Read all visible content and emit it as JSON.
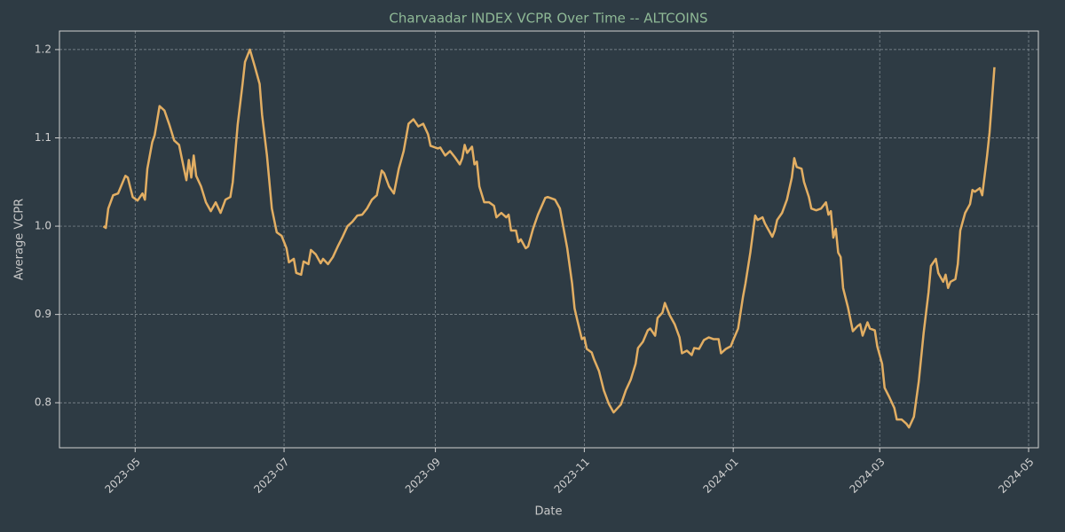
{
  "chart_data": {
    "type": "line",
    "title": "Charvaadar INDEX VCPR Over Time -- ALTCOINS",
    "x_label": "Date",
    "y_label": "Average VCPR",
    "x": [
      "2023-04-18",
      "2023-04-19",
      "2023-04-20",
      "2023-04-22",
      "2023-04-24",
      "2023-04-27",
      "2023-04-28",
      "2023-04-30",
      "2023-05-02",
      "2023-05-04",
      "2023-05-05",
      "2023-05-06",
      "2023-05-08",
      "2023-05-09",
      "2023-05-11",
      "2023-05-13",
      "2023-05-15",
      "2023-05-17",
      "2023-05-19",
      "2023-05-21",
      "2023-05-22",
      "2023-05-23",
      "2023-05-24",
      "2023-05-25",
      "2023-05-26",
      "2023-05-28",
      "2023-05-30",
      "2023-06-01",
      "2023-06-03",
      "2023-06-05",
      "2023-06-07",
      "2023-06-09",
      "2023-06-10",
      "2023-06-12",
      "2023-06-14",
      "2023-06-15",
      "2023-06-17",
      "2023-06-19",
      "2023-06-21",
      "2023-06-22",
      "2023-06-24",
      "2023-06-25",
      "2023-06-26",
      "2023-06-28",
      "2023-06-30",
      "2023-07-02",
      "2023-07-03",
      "2023-07-05",
      "2023-07-06",
      "2023-07-08",
      "2023-07-09",
      "2023-07-11",
      "2023-07-12",
      "2023-07-14",
      "2023-07-16",
      "2023-07-17",
      "2023-07-19",
      "2023-07-21",
      "2023-07-23",
      "2023-07-25",
      "2023-07-27",
      "2023-07-29",
      "2023-07-31",
      "2023-08-02",
      "2023-08-04",
      "2023-08-06",
      "2023-08-08",
      "2023-08-10",
      "2023-08-11",
      "2023-08-13",
      "2023-08-15",
      "2023-08-17",
      "2023-08-19",
      "2023-08-21",
      "2023-08-23",
      "2023-08-25",
      "2023-08-27",
      "2023-08-29",
      "2023-08-30",
      "2023-09-02",
      "2023-09-03",
      "2023-09-05",
      "2023-09-07",
      "2023-09-09",
      "2023-09-11",
      "2023-09-12",
      "2023-09-13",
      "2023-09-14",
      "2023-09-16",
      "2023-09-17",
      "2023-09-18",
      "2023-09-19",
      "2023-09-21",
      "2023-09-23",
      "2023-09-25",
      "2023-09-26",
      "2023-09-28",
      "2023-09-30",
      "2023-10-01",
      "2023-10-02",
      "2023-10-04",
      "2023-10-05",
      "2023-10-06",
      "2023-10-08",
      "2023-10-09",
      "2023-10-10",
      "2023-10-11",
      "2023-10-13",
      "2023-10-16",
      "2023-10-17",
      "2023-10-20",
      "2023-10-22",
      "2023-10-23",
      "2023-10-25",
      "2023-10-27",
      "2023-10-28",
      "2023-10-29",
      "2023-10-31",
      "2023-11-01",
      "2023-11-02",
      "2023-11-04",
      "2023-11-05",
      "2023-11-07",
      "2023-11-09",
      "2023-11-11",
      "2023-11-13",
      "2023-11-14",
      "2023-11-16",
      "2023-11-18",
      "2023-11-20",
      "2023-11-22",
      "2023-11-23",
      "2023-11-25",
      "2023-11-27",
      "2023-11-28",
      "2023-11-30",
      "2023-12-01",
      "2023-12-03",
      "2023-12-04",
      "2023-12-06",
      "2023-12-08",
      "2023-12-10",
      "2023-12-11",
      "2023-12-13",
      "2023-12-15",
      "2023-12-16",
      "2023-12-18",
      "2023-12-20",
      "2023-12-22",
      "2023-12-24",
      "2023-12-26",
      "2023-12-27",
      "2023-12-29",
      "2023-12-31",
      "2024-01-01",
      "2024-01-03",
      "2024-01-05",
      "2024-01-06",
      "2024-01-08",
      "2024-01-10",
      "2024-01-11",
      "2024-01-13",
      "2024-01-14",
      "2024-01-16",
      "2024-01-17",
      "2024-01-18",
      "2024-01-19",
      "2024-01-21",
      "2024-01-23",
      "2024-01-25",
      "2024-01-26",
      "2024-01-27",
      "2024-01-29",
      "2024-01-30",
      "2024-02-01",
      "2024-02-02",
      "2024-02-04",
      "2024-02-06",
      "2024-02-08",
      "2024-02-09",
      "2024-02-10",
      "2024-02-11",
      "2024-02-12",
      "2024-02-13",
      "2024-02-14",
      "2024-02-15",
      "2024-02-17",
      "2024-02-19",
      "2024-02-21",
      "2024-02-22",
      "2024-02-23",
      "2024-02-25",
      "2024-02-26",
      "2024-02-28",
      "2024-02-29",
      "2024-03-02",
      "2024-03-03",
      "2024-03-05",
      "2024-03-07",
      "2024-03-08",
      "2024-03-10",
      "2024-03-12",
      "2024-03-13",
      "2024-03-15",
      "2024-03-17",
      "2024-03-19",
      "2024-03-21",
      "2024-03-22",
      "2024-03-24",
      "2024-03-25",
      "2024-03-27",
      "2024-03-28",
      "2024-03-29",
      "2024-03-30",
      "2024-04-01",
      "2024-04-02",
      "2024-04-03",
      "2024-04-05",
      "2024-04-07",
      "2024-04-08",
      "2024-04-09",
      "2024-04-11",
      "2024-04-12",
      "2024-04-14",
      "2024-04-15",
      "2024-04-17"
    ],
    "series": [
      {
        "name": "Average VCPR",
        "color": "#e2ae63",
        "values": [
          1.0,
          0.998,
          1.02,
          1.035,
          1.037,
          1.057,
          1.055,
          1.033,
          1.029,
          1.037,
          1.03,
          1.065,
          1.095,
          1.103,
          1.136,
          1.131,
          1.115,
          1.097,
          1.092,
          1.065,
          1.052,
          1.075,
          1.055,
          1.08,
          1.057,
          1.045,
          1.027,
          1.017,
          1.027,
          1.015,
          1.03,
          1.033,
          1.05,
          1.115,
          1.161,
          1.186,
          1.2,
          1.181,
          1.161,
          1.126,
          1.08,
          1.05,
          1.02,
          0.993,
          0.989,
          0.975,
          0.959,
          0.963,
          0.947,
          0.945,
          0.96,
          0.957,
          0.973,
          0.968,
          0.958,
          0.963,
          0.957,
          0.965,
          0.977,
          0.988,
          1.0,
          1.005,
          1.012,
          1.013,
          1.02,
          1.03,
          1.035,
          1.063,
          1.06,
          1.045,
          1.037,
          1.065,
          1.085,
          1.116,
          1.121,
          1.113,
          1.116,
          1.104,
          1.091,
          1.088,
          1.089,
          1.08,
          1.085,
          1.078,
          1.07,
          1.077,
          1.092,
          1.083,
          1.09,
          1.07,
          1.073,
          1.045,
          1.027,
          1.027,
          1.023,
          1.01,
          1.015,
          1.01,
          1.013,
          0.995,
          0.995,
          0.982,
          0.985,
          0.975,
          0.977,
          0.987,
          0.997,
          1.013,
          1.032,
          1.033,
          1.03,
          1.02,
          1.005,
          0.975,
          0.935,
          0.907,
          0.895,
          0.872,
          0.874,
          0.861,
          0.857,
          0.849,
          0.836,
          0.814,
          0.799,
          0.789,
          0.792,
          0.798,
          0.814,
          0.826,
          0.844,
          0.862,
          0.869,
          0.882,
          0.884,
          0.876,
          0.896,
          0.902,
          0.913,
          0.899,
          0.889,
          0.874,
          0.856,
          0.859,
          0.854,
          0.862,
          0.861,
          0.871,
          0.874,
          0.872,
          0.872,
          0.856,
          0.861,
          0.864,
          0.871,
          0.884,
          0.92,
          0.935,
          0.97,
          1.012,
          1.007,
          1.01,
          1.003,
          0.993,
          0.988,
          0.995,
          1.007,
          1.015,
          1.03,
          1.055,
          1.077,
          1.067,
          1.065,
          1.05,
          1.033,
          1.02,
          1.018,
          1.02,
          1.027,
          1.013,
          1.017,
          0.987,
          0.997,
          0.97,
          0.965,
          0.93,
          0.908,
          0.881,
          0.887,
          0.889,
          0.876,
          0.891,
          0.884,
          0.882,
          0.864,
          0.844,
          0.817,
          0.806,
          0.794,
          0.781,
          0.781,
          0.776,
          0.772,
          0.784,
          0.824,
          0.879,
          0.925,
          0.955,
          0.963,
          0.947,
          0.937,
          0.945,
          0.93,
          0.937,
          0.94,
          0.957,
          0.995,
          1.015,
          1.025,
          1.041,
          1.039,
          1.043,
          1.035,
          1.08,
          1.106,
          1.18
        ]
      }
    ],
    "xlim": [
      "2023-03-31",
      "2024-05-05"
    ],
    "xticks": [
      "2023-05",
      "2023-07",
      "2023-09",
      "2023-11",
      "2024-01",
      "2024-03",
      "2024-05"
    ],
    "ylim": [
      0.749,
      1.221
    ],
    "yticks": [
      0.8,
      0.9,
      {
        "value": 1,
        "label": "1.0"
      },
      1.1,
      1.2
    ],
    "grid": true
  }
}
